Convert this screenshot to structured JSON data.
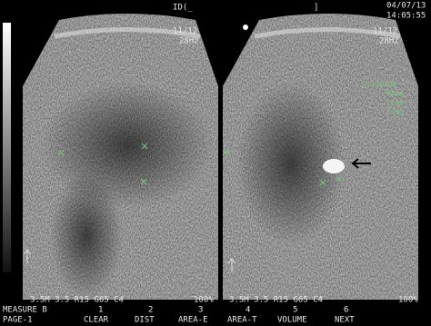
{
  "header": {
    "id": "ID(_",
    "bracket": "]",
    "date": "04/07/13",
    "time": "14:05:55"
  },
  "left_panel": {
    "scale": "11/12",
    "frame_rate": "28Hz",
    "params": "3.5M 3.5 R15 G65 C4",
    "power": "100%"
  },
  "right_panel": {
    "scale": "11/12",
    "frame_rate": "28Hz",
    "params": "3.5M 3.5 R15 G65 C4",
    "power": "100%",
    "measure_title": "D(3)ANDE",
    "measurements": [
      "90mm",
      "18mm",
      "10mm"
    ]
  },
  "menu": {
    "row1_label": "MEASURE B",
    "row1_keys": [
      "1",
      "2",
      "3",
      "4",
      "5",
      "6"
    ],
    "row2": [
      "PAGE-1",
      "CLEAR",
      "DIST",
      "AREA-E",
      "AREA-T",
      "VOLUME",
      "NEXT"
    ]
  }
}
